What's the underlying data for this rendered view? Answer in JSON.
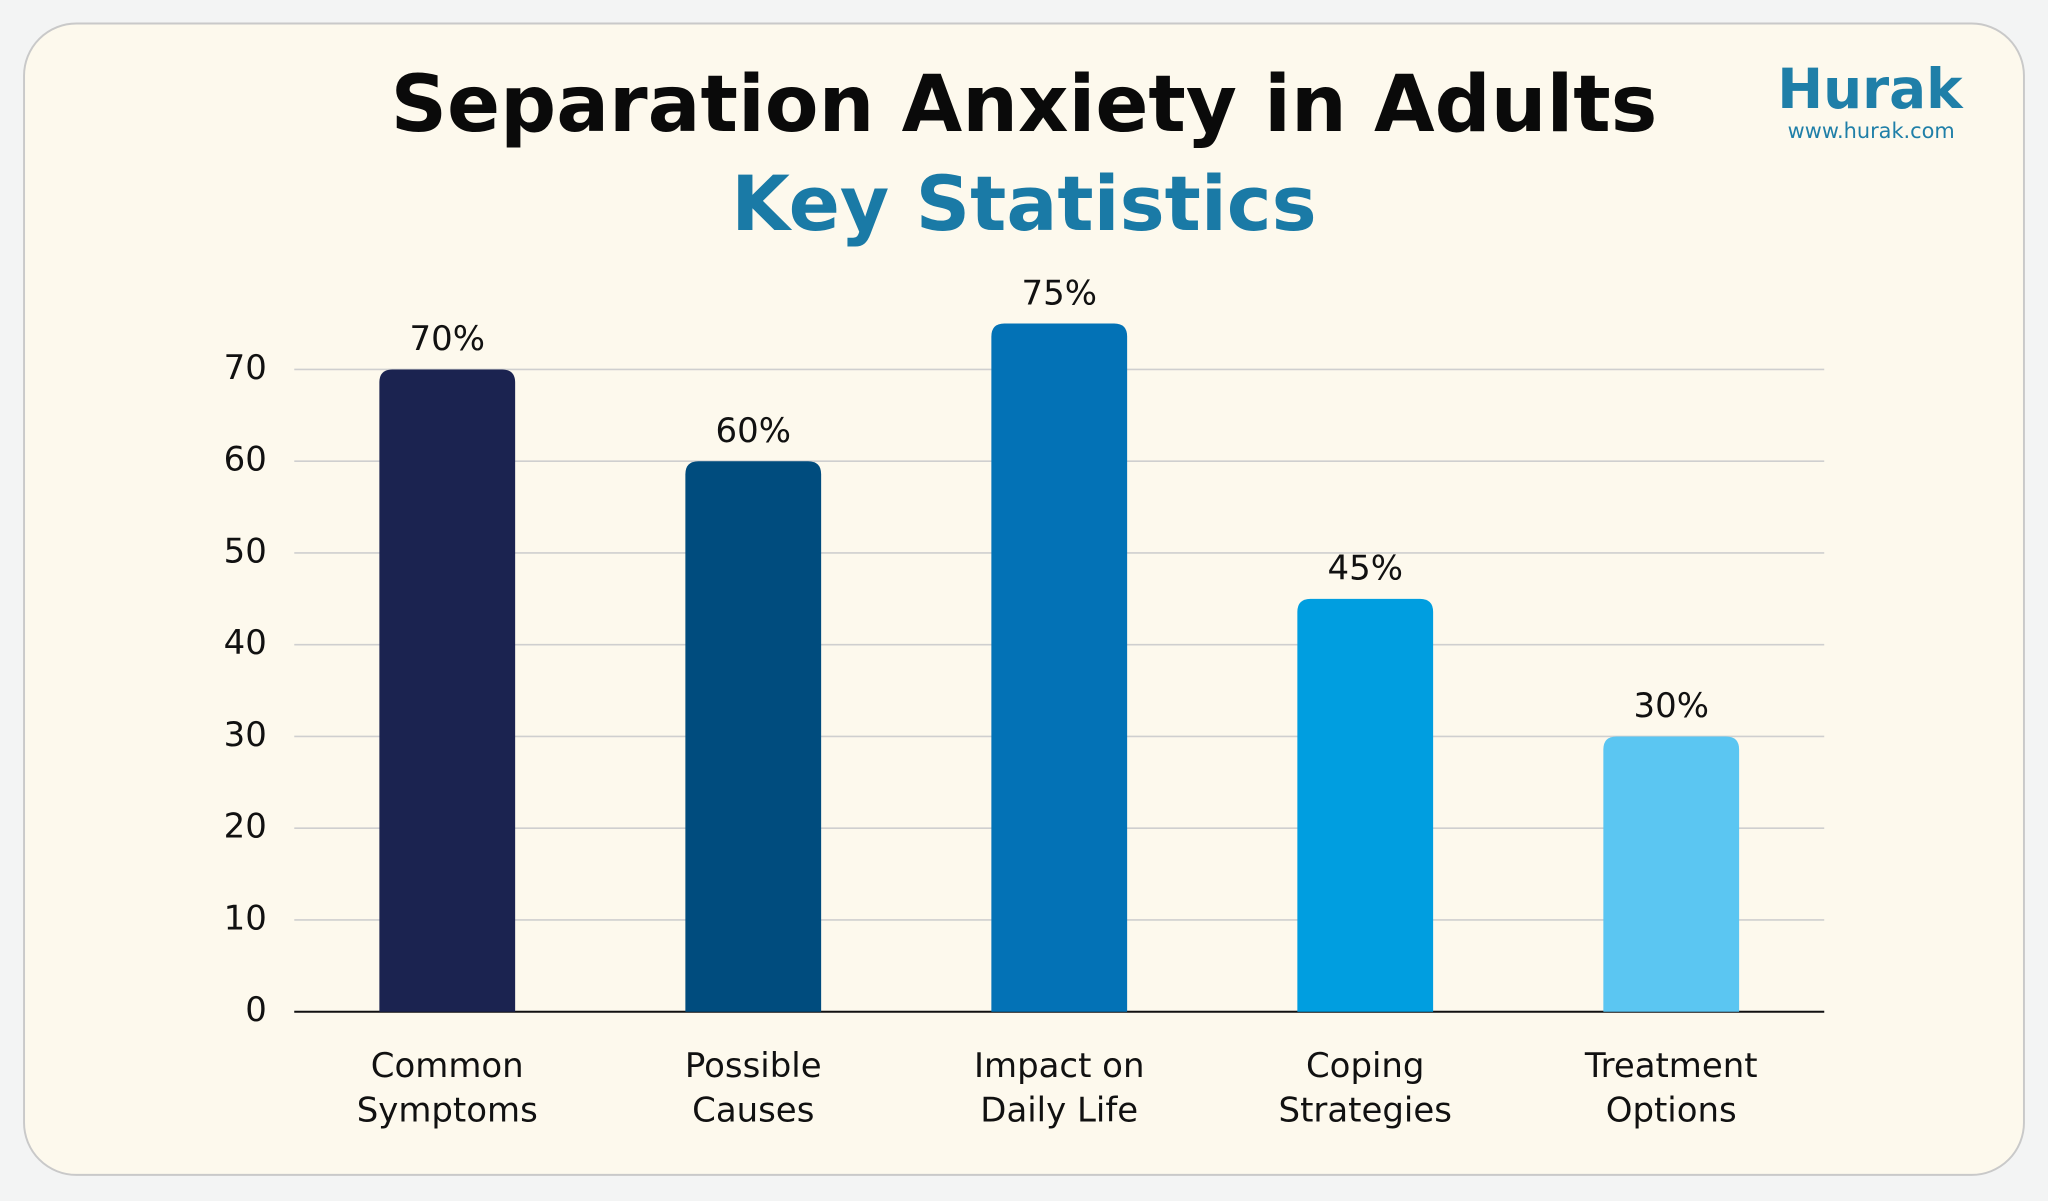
{
  "chart_data": {
    "type": "bar",
    "title": "Separation Anxiety in Adults",
    "subtitle": "Key Statistics",
    "brand": {
      "name": "Hurak",
      "url": "www.hurak.com"
    },
    "categories": [
      "Common\nSymptoms",
      "Possible\nCauses",
      "Impact on\nDaily Life",
      "Coping\nStrategies",
      "Treatment\nOptions"
    ],
    "values": [
      70,
      60,
      75,
      45,
      30
    ],
    "value_labels": [
      "70%",
      "60%",
      "75%",
      "45%",
      "30%"
    ],
    "colors": [
      "#1b2350",
      "#004c7e",
      "#0372b6",
      "#009ee0",
      "#5bc6f2"
    ],
    "ylim": [
      0,
      70
    ],
    "yticks": [
      0,
      10,
      20,
      30,
      40,
      50,
      60,
      70
    ],
    "grid": true
  }
}
